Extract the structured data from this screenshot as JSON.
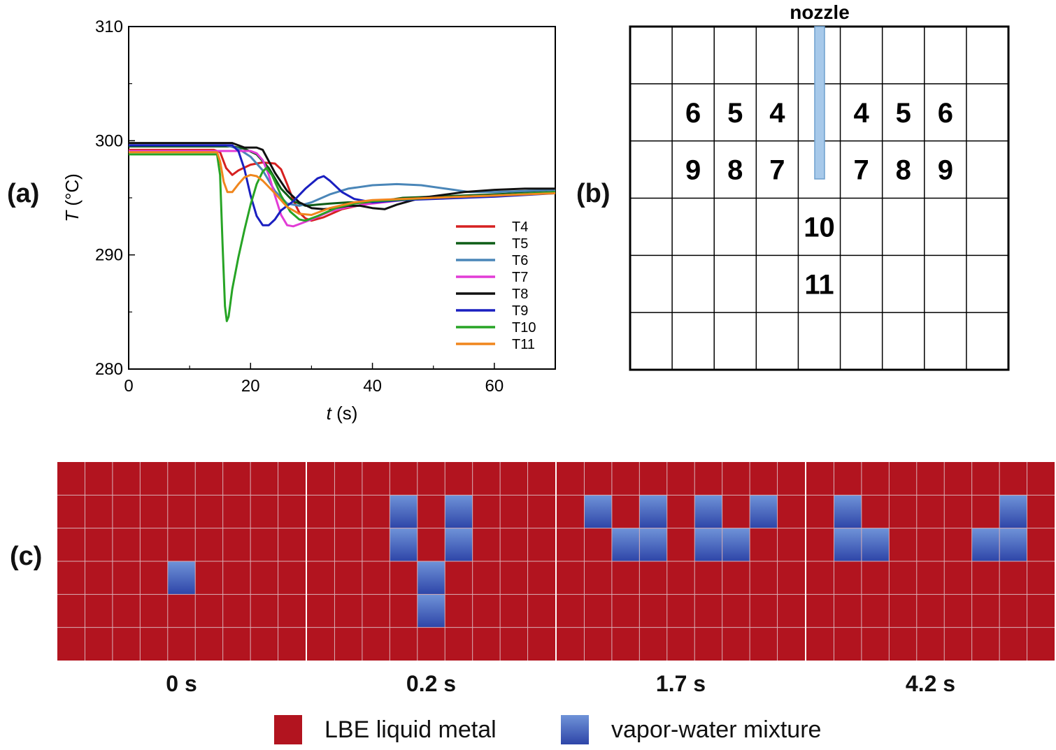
{
  "panel_labels": {
    "a": "(a)",
    "b": "(b)",
    "c": "(c)"
  },
  "chart_data": {
    "type": "line",
    "title": "",
    "xlabel_var": "t",
    "xlabel_unit": " (s)",
    "ylabel_var": "T",
    "ylabel_unit": " (°C)",
    "xlim": [
      0,
      70
    ],
    "ylim": [
      280,
      310
    ],
    "xticks": [
      0,
      20,
      40,
      60
    ],
    "yticks": [
      280,
      290,
      300,
      310
    ],
    "grid": false,
    "legend_position": "bottom-right",
    "series": [
      {
        "name": "T4",
        "color": "#d62020",
        "points": [
          [
            0,
            299.2
          ],
          [
            14,
            299.2
          ],
          [
            15,
            299.0
          ],
          [
            16,
            297.6
          ],
          [
            17,
            297.0
          ],
          [
            18,
            297.4
          ],
          [
            20,
            297.9
          ],
          [
            22,
            298.1
          ],
          [
            24,
            298.0
          ],
          [
            25,
            297.5
          ],
          [
            26,
            296.2
          ],
          [
            27,
            294.8
          ],
          [
            28,
            293.7
          ],
          [
            29,
            293.2
          ],
          [
            30,
            293.0
          ],
          [
            32,
            293.3
          ],
          [
            35,
            294.0
          ],
          [
            40,
            294.6
          ],
          [
            45,
            294.9
          ],
          [
            50,
            295.0
          ],
          [
            60,
            295.2
          ],
          [
            70,
            295.5
          ]
        ]
      },
      {
        "name": "T5",
        "color": "#0d5d16",
        "points": [
          [
            0,
            299.5
          ],
          [
            17,
            299.5
          ],
          [
            19,
            299.3
          ],
          [
            21,
            298.8
          ],
          [
            23,
            297.6
          ],
          [
            25,
            295.8
          ],
          [
            27,
            294.7
          ],
          [
            29,
            294.3
          ],
          [
            31,
            294.4
          ],
          [
            33,
            294.5
          ],
          [
            36,
            294.6
          ],
          [
            40,
            294.6
          ],
          [
            45,
            295.0
          ],
          [
            50,
            295.1
          ],
          [
            60,
            295.3
          ],
          [
            70,
            295.6
          ]
        ]
      },
      {
        "name": "T6",
        "color": "#4a86b8",
        "points": [
          [
            0,
            299.6
          ],
          [
            16,
            299.6
          ],
          [
            18,
            299.3
          ],
          [
            20,
            298.6
          ],
          [
            22,
            297.4
          ],
          [
            24,
            295.6
          ],
          [
            26,
            294.5
          ],
          [
            28,
            294.3
          ],
          [
            30,
            294.6
          ],
          [
            33,
            295.3
          ],
          [
            36,
            295.8
          ],
          [
            40,
            296.1
          ],
          [
            44,
            296.2
          ],
          [
            48,
            296.1
          ],
          [
            52,
            295.8
          ],
          [
            56,
            295.5
          ],
          [
            60,
            295.5
          ],
          [
            65,
            295.6
          ],
          [
            70,
            295.7
          ]
        ]
      },
      {
        "name": "T7",
        "color": "#e23cd6",
        "points": [
          [
            0,
            299.1
          ],
          [
            20,
            299.1
          ],
          [
            21,
            298.9
          ],
          [
            22,
            298.3
          ],
          [
            23,
            297.0
          ],
          [
            24,
            295.2
          ],
          [
            25,
            293.5
          ],
          [
            26,
            292.6
          ],
          [
            27,
            292.5
          ],
          [
            28,
            292.7
          ],
          [
            30,
            293.1
          ],
          [
            33,
            293.8
          ],
          [
            36,
            294.2
          ],
          [
            40,
            294.5
          ],
          [
            45,
            294.8
          ],
          [
            50,
            295.0
          ],
          [
            60,
            295.2
          ],
          [
            70,
            295.5
          ]
        ]
      },
      {
        "name": "T8",
        "color": "#111111",
        "points": [
          [
            0,
            299.8
          ],
          [
            17,
            299.8
          ],
          [
            18,
            299.6
          ],
          [
            19,
            299.4
          ],
          [
            21,
            299.4
          ],
          [
            22,
            299.2
          ],
          [
            24,
            297.2
          ],
          [
            26,
            295.6
          ],
          [
            28,
            294.6
          ],
          [
            30,
            294.1
          ],
          [
            32,
            294.0
          ],
          [
            34,
            294.1
          ],
          [
            36,
            294.3
          ],
          [
            38,
            294.3
          ],
          [
            40,
            294.1
          ],
          [
            42,
            294.0
          ],
          [
            44,
            294.4
          ],
          [
            48,
            295.0
          ],
          [
            55,
            295.5
          ],
          [
            60,
            295.7
          ],
          [
            65,
            295.8
          ],
          [
            70,
            295.8
          ]
        ]
      },
      {
        "name": "T9",
        "color": "#1a1fc0",
        "points": [
          [
            0,
            299.6
          ],
          [
            17,
            299.6
          ],
          [
            18,
            299.1
          ],
          [
            19,
            297.5
          ],
          [
            20,
            295.2
          ],
          [
            21,
            293.4
          ],
          [
            22,
            292.6
          ],
          [
            23,
            292.6
          ],
          [
            24,
            293.1
          ],
          [
            25,
            293.9
          ],
          [
            27,
            294.7
          ],
          [
            29,
            295.8
          ],
          [
            31,
            296.7
          ],
          [
            32,
            296.9
          ],
          [
            33,
            296.5
          ],
          [
            35,
            295.5
          ],
          [
            37,
            294.9
          ],
          [
            40,
            294.6
          ],
          [
            45,
            294.8
          ],
          [
            50,
            294.9
          ],
          [
            60,
            295.1
          ],
          [
            70,
            295.4
          ]
        ]
      },
      {
        "name": "T10",
        "color": "#27a425",
        "points": [
          [
            0,
            298.8
          ],
          [
            14.5,
            298.8
          ],
          [
            15,
            297.0
          ],
          [
            15.4,
            291.0
          ],
          [
            15.8,
            285.5
          ],
          [
            16.1,
            284.2
          ],
          [
            16.4,
            284.6
          ],
          [
            17,
            287.0
          ],
          [
            18,
            289.8
          ],
          [
            19,
            292.2
          ],
          [
            20,
            294.4
          ],
          [
            21,
            296.2
          ],
          [
            22,
            297.3
          ],
          [
            22.6,
            297.6
          ],
          [
            23.5,
            297.0
          ],
          [
            25,
            295.2
          ],
          [
            26.5,
            293.8
          ],
          [
            28,
            293.1
          ],
          [
            29,
            293.0
          ],
          [
            31,
            293.4
          ],
          [
            34,
            294.1
          ],
          [
            37,
            294.5
          ],
          [
            40,
            294.7
          ],
          [
            50,
            295.0
          ],
          [
            60,
            295.2
          ],
          [
            70,
            295.5
          ]
        ]
      },
      {
        "name": "T11",
        "color": "#f0861d",
        "points": [
          [
            0,
            299.0
          ],
          [
            14.5,
            299.0
          ],
          [
            15,
            298.2
          ],
          [
            15.6,
            296.4
          ],
          [
            16.2,
            295.5
          ],
          [
            17,
            295.5
          ],
          [
            18,
            296.2
          ],
          [
            19,
            296.8
          ],
          [
            20,
            297.0
          ],
          [
            21,
            296.9
          ],
          [
            22,
            296.5
          ],
          [
            24,
            295.4
          ],
          [
            26,
            294.2
          ],
          [
            28,
            293.6
          ],
          [
            30,
            293.5
          ],
          [
            33,
            294.1
          ],
          [
            37,
            294.6
          ],
          [
            40,
            294.8
          ],
          [
            50,
            295.0
          ],
          [
            60,
            295.2
          ],
          [
            70,
            295.4
          ]
        ]
      }
    ]
  },
  "panel_b": {
    "nozzle_label": "nozzle",
    "cells": [
      {
        "row": 1,
        "col": 1,
        "text": "6"
      },
      {
        "row": 1,
        "col": 2,
        "text": "5"
      },
      {
        "row": 1,
        "col": 3,
        "text": "4"
      },
      {
        "row": 1,
        "col": 5,
        "text": "4"
      },
      {
        "row": 1,
        "col": 6,
        "text": "5"
      },
      {
        "row": 1,
        "col": 7,
        "text": "6"
      },
      {
        "row": 2,
        "col": 1,
        "text": "9"
      },
      {
        "row": 2,
        "col": 2,
        "text": "8"
      },
      {
        "row": 2,
        "col": 3,
        "text": "7"
      },
      {
        "row": 2,
        "col": 5,
        "text": "7"
      },
      {
        "row": 2,
        "col": 6,
        "text": "8"
      },
      {
        "row": 2,
        "col": 7,
        "text": "9"
      },
      {
        "row": 3,
        "col": 4,
        "text": "10"
      },
      {
        "row": 4,
        "col": 4,
        "text": "11"
      }
    ]
  },
  "panel_c": {
    "liquid_color": "#b2141f",
    "vapor_color_top": "#6f93d8",
    "vapor_color_bottom": "#2e45a8",
    "snapshots": [
      {
        "label": "0 s",
        "vapor_cells": [
          [
            3,
            4
          ]
        ]
      },
      {
        "label": "0.2 s",
        "vapor_cells": [
          [
            1,
            3
          ],
          [
            1,
            5
          ],
          [
            2,
            3
          ],
          [
            2,
            5
          ],
          [
            3,
            4
          ],
          [
            4,
            4
          ]
        ]
      },
      {
        "label": "1.7 s",
        "vapor_cells": [
          [
            1,
            1
          ],
          [
            1,
            3
          ],
          [
            1,
            5
          ],
          [
            1,
            7
          ],
          [
            2,
            2
          ],
          [
            2,
            3
          ],
          [
            2,
            5
          ],
          [
            2,
            6
          ]
        ]
      },
      {
        "label": "4.2 s",
        "vapor_cells": [
          [
            1,
            1
          ],
          [
            1,
            7
          ],
          [
            2,
            1
          ],
          [
            2,
            2
          ],
          [
            2,
            6
          ],
          [
            2,
            7
          ]
        ]
      }
    ],
    "legend": {
      "liquid_label": "LBE liquid metal",
      "vapor_label": "vapor-water mixture"
    }
  }
}
